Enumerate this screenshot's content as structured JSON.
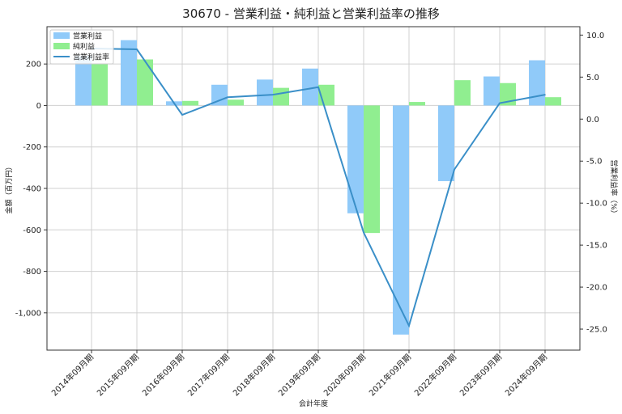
{
  "chart_data": {
    "type": "bar",
    "title": "30670 - 営業利益・純利益と営業利益率の推移",
    "xlabel": "会計年度",
    "ylabel": "金額（百万円）",
    "y2label": "営業利益率（%）",
    "categories": [
      "2014年09月期",
      "2015年09月期",
      "2016年09月期",
      "2017年09月期",
      "2018年09月期",
      "2019年09月期",
      "2020年09月期",
      "2021年09月期",
      "2022年09月期",
      "2023年09月期",
      "2024年09月期"
    ],
    "series": [
      {
        "name": "営業利益",
        "type": "bar",
        "axis": "left",
        "color": "#90caf9",
        "values": [
          240,
          315,
          20,
          100,
          125,
          178,
          -520,
          -1105,
          -365,
          140,
          218
        ]
      },
      {
        "name": "純利益",
        "type": "bar",
        "axis": "left",
        "color": "#90ee90",
        "values": [
          200,
          222,
          22,
          28,
          85,
          100,
          -615,
          17,
          122,
          108,
          40
        ]
      },
      {
        "name": "営業利益率",
        "type": "line",
        "axis": "right",
        "color": "#3a8fc8",
        "values": [
          8.4,
          8.3,
          0.5,
          2.6,
          2.9,
          3.8,
          -13.5,
          -24.6,
          -6.0,
          1.9,
          2.9
        ]
      }
    ],
    "ylim": [
      -1180,
      380
    ],
    "y2lim": [
      -27.5,
      11.0
    ],
    "yticks": [
      200,
      0,
      -200,
      -400,
      -600,
      -800,
      -1000
    ],
    "ytick_labels": [
      "200",
      "0",
      "-200",
      "-400",
      "-600",
      "-800",
      "-1,000"
    ],
    "y2ticks": [
      10,
      5,
      0,
      -5,
      -10,
      -15,
      -20,
      -25
    ],
    "y2tick_labels": [
      "10.0",
      "5.0",
      "0.0",
      "-5.0",
      "-10.0",
      "-15.0",
      "-20.0",
      "-25.0"
    ],
    "grid": true,
    "legend": "top-left"
  }
}
